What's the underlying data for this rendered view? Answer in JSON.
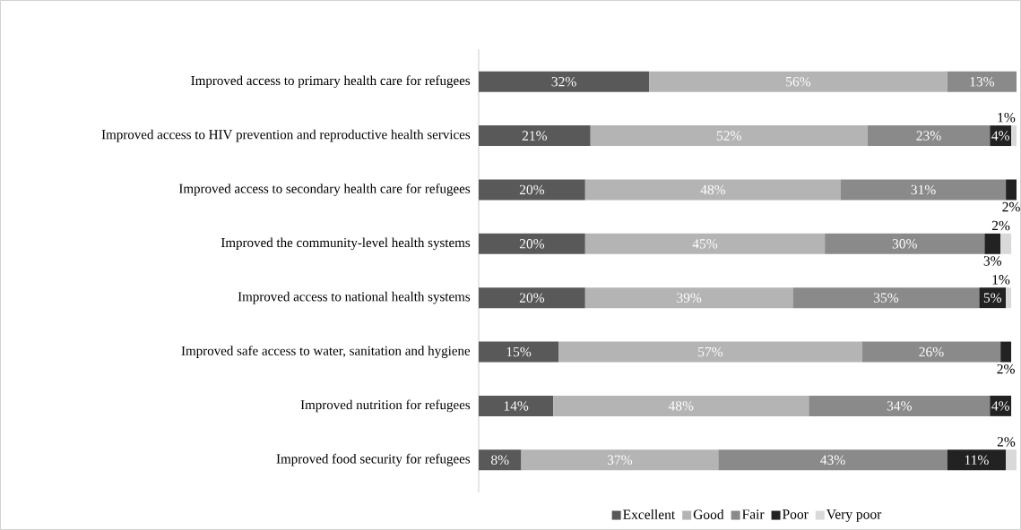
{
  "chart_data": {
    "type": "bar",
    "orientation": "horizontal",
    "stacked": true,
    "legend": "bottom",
    "categories": [
      "Improved access to primary health care for refugees",
      "Improved access to HIV prevention and reproductive health services",
      "Improved access to secondary health care for refugees",
      "Improved the community-level health systems",
      "Improved access to national health systems",
      "Improved safe access to water, sanitation and hygiene",
      "Improved nutrition for refugees",
      "Improved food security for refugees"
    ],
    "series": [
      {
        "name": "Excellent",
        "color": "#595959",
        "values": [
          32,
          21,
          20,
          20,
          20,
          15,
          14,
          8
        ],
        "value_labels": [
          "32%",
          "21%",
          "20%",
          "20%",
          "20%",
          "15%",
          "14%",
          "8%"
        ]
      },
      {
        "name": "Good",
        "color": "#b4b4b4",
        "values": [
          56,
          52,
          48,
          45,
          39,
          57,
          48,
          37
        ],
        "value_labels": [
          "56%",
          "52%",
          "48%",
          "45%",
          "39%",
          "57%",
          "48%",
          "37%"
        ]
      },
      {
        "name": "Fair",
        "color": "#8a8a8a",
        "values": [
          13,
          23,
          31,
          30,
          35,
          26,
          34,
          43
        ],
        "value_labels": [
          "13%",
          "23%",
          "31%",
          "30%",
          "35%",
          "26%",
          "34%",
          "43%"
        ]
      },
      {
        "name": "Poor",
        "color": "#222222",
        "values": [
          null,
          4,
          2,
          3,
          5,
          2,
          4,
          11
        ],
        "value_labels": [
          null,
          "4%",
          "2%",
          "3%",
          "5%",
          "2%",
          "4%",
          "11%"
        ]
      },
      {
        "name": "Very poor",
        "color": "#d9d9d9",
        "values": [
          null,
          1,
          null,
          2,
          1,
          null,
          null,
          2
        ],
        "value_labels": [
          null,
          "1%",
          null,
          "2%",
          "1%",
          null,
          null,
          "2%"
        ]
      }
    ]
  }
}
